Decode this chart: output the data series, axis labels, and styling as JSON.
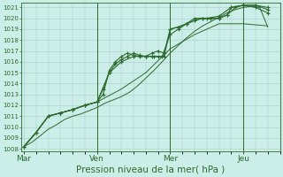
{
  "xlabel": "Pression niveau de la mer( hPa )",
  "bg_color": "#cceee8",
  "grid_color": "#aacccc",
  "line_color": "#2d6a2d",
  "ylim": [
    1008,
    1021
  ],
  "yticks": [
    1008,
    1009,
    1010,
    1011,
    1012,
    1013,
    1014,
    1015,
    1016,
    1017,
    1018,
    1019,
    1020,
    1021
  ],
  "xtick_labels": [
    "Mar",
    "Ven",
    "Mer",
    "Jeu"
  ],
  "xtick_positions": [
    0,
    3,
    6,
    9
  ],
  "vline_positions": [
    3,
    6,
    9
  ],
  "xlim": [
    -0.1,
    10.5
  ],
  "series": [
    {
      "x": [
        0,
        0.33,
        0.67,
        1.0,
        1.33,
        1.67,
        2.0,
        2.33,
        2.67,
        3.0,
        3.33,
        3.67,
        4.0,
        4.33,
        4.67,
        5.0,
        5.33,
        5.67,
        6.0,
        6.33,
        6.67,
        7.0,
        7.33,
        7.67,
        8.0,
        8.33,
        8.67,
        9.0,
        9.33,
        9.67,
        10.0
      ],
      "y": [
        1008.2,
        1008.6,
        1009.2,
        1009.8,
        1010.2,
        1010.7,
        1011.0,
        1011.2,
        1011.5,
        1011.8,
        1012.2,
        1012.5,
        1012.8,
        1013.2,
        1013.8,
        1014.5,
        1015.2,
        1016.0,
        1016.8,
        1017.5,
        1018.2,
        1018.8,
        1019.3,
        1019.7,
        1020.1,
        1020.5,
        1020.8,
        1021.0,
        1021.1,
        1021.0,
        1019.2
      ],
      "marker": false
    },
    {
      "x": [
        0,
        0.5,
        1.0,
        1.5,
        2.0,
        2.5,
        3.0,
        3.5,
        4.0,
        4.5,
        5.0,
        5.33,
        5.67,
        6.0,
        6.33,
        6.67,
        7.0,
        7.33,
        7.67,
        8.0,
        8.33,
        8.5,
        9.0,
        9.5,
        10.0
      ],
      "y": [
        1008.2,
        1009.5,
        1011.0,
        1011.3,
        1011.6,
        1012.0,
        1012.3,
        1015.0,
        1016.0,
        1016.5,
        1016.5,
        1016.5,
        1016.5,
        1018.5,
        1019.0,
        1019.5,
        1019.8,
        1020.0,
        1020.0,
        1020.0,
        1020.3,
        1021.0,
        1021.2,
        1021.0,
        1020.5
      ],
      "marker": true
    },
    {
      "x": [
        0,
        0.5,
        1.0,
        1.5,
        2.0,
        2.5,
        3.0,
        3.25,
        3.5,
        3.75,
        4.0,
        4.25,
        4.5,
        4.75,
        5.0,
        5.25,
        5.5,
        5.75,
        6.0,
        6.33,
        6.67,
        7.0,
        7.33,
        7.67,
        8.0,
        8.33,
        8.67,
        9.0,
        9.5,
        10.0
      ],
      "y": [
        1008.2,
        1009.5,
        1011.0,
        1011.3,
        1011.6,
        1012.0,
        1012.3,
        1013.5,
        1015.0,
        1015.8,
        1016.2,
        1016.5,
        1016.8,
        1016.6,
        1016.5,
        1016.5,
        1016.5,
        1016.5,
        1019.0,
        1019.2,
        1019.5,
        1019.8,
        1020.0,
        1020.0,
        1020.0,
        1020.3,
        1021.0,
        1021.2,
        1021.2,
        1020.8
      ],
      "marker": true
    },
    {
      "x": [
        0,
        0.5,
        1.0,
        1.5,
        2.0,
        2.5,
        3.0,
        3.25,
        3.5,
        3.75,
        4.0,
        4.25,
        4.5,
        4.75,
        5.0,
        5.25,
        5.5,
        5.75,
        6.0,
        6.33,
        6.67,
        7.0,
        7.5,
        8.0,
        8.5,
        9.0,
        9.5,
        10.0
      ],
      "y": [
        1008.2,
        1009.5,
        1011.0,
        1011.3,
        1011.6,
        1012.0,
        1012.3,
        1013.0,
        1015.2,
        1016.0,
        1016.5,
        1016.8,
        1016.6,
        1016.5,
        1016.5,
        1016.8,
        1017.0,
        1016.8,
        1019.0,
        1019.2,
        1019.5,
        1020.0,
        1020.0,
        1020.2,
        1021.0,
        1021.2,
        1021.2,
        1021.0
      ],
      "marker": true
    },
    {
      "x": [
        0,
        0.5,
        1.0,
        1.5,
        2.0,
        2.5,
        3.0,
        4.0,
        5.0,
        6.0,
        7.0,
        8.0,
        9.0,
        10.0
      ],
      "y": [
        1008.2,
        1009.5,
        1011.0,
        1011.3,
        1011.6,
        1012.0,
        1012.3,
        1013.5,
        1015.0,
        1017.2,
        1018.5,
        1019.5,
        1019.5,
        1019.3
      ],
      "marker": false
    }
  ]
}
